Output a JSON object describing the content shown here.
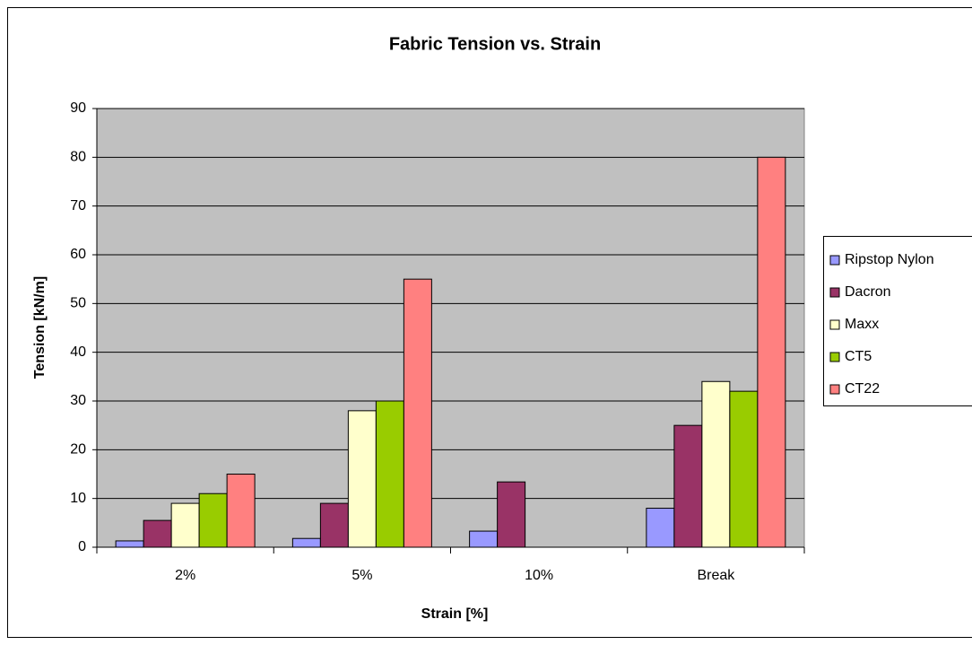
{
  "chart_data": {
    "type": "bar",
    "title": "Fabric Tension vs. Strain",
    "x_label": "Strain [%]",
    "y_label": "Tension [kN/m]",
    "categories": [
      "2%",
      "5%",
      "10%",
      "Break"
    ],
    "series": [
      {
        "name": "Ripstop Nylon",
        "color": "#9999ff",
        "values": [
          1.3,
          1.8,
          3.3,
          8
        ]
      },
      {
        "name": "Dacron",
        "color": "#993366",
        "values": [
          5.5,
          9,
          13.4,
          25
        ]
      },
      {
        "name": "Maxx",
        "color": "#ffffcc",
        "values": [
          9,
          28,
          null,
          34
        ]
      },
      {
        "name": "CT5",
        "color": "#99cc00",
        "values": [
          11,
          30,
          null,
          32
        ]
      },
      {
        "name": "CT22",
        "color": "#ff8080",
        "values": [
          15,
          55,
          null,
          80
        ]
      }
    ],
    "ylim": [
      0,
      90
    ],
    "yticks": [
      0,
      10,
      20,
      30,
      40,
      50,
      60,
      70,
      80,
      90
    ],
    "grid": true,
    "legend": "right"
  }
}
